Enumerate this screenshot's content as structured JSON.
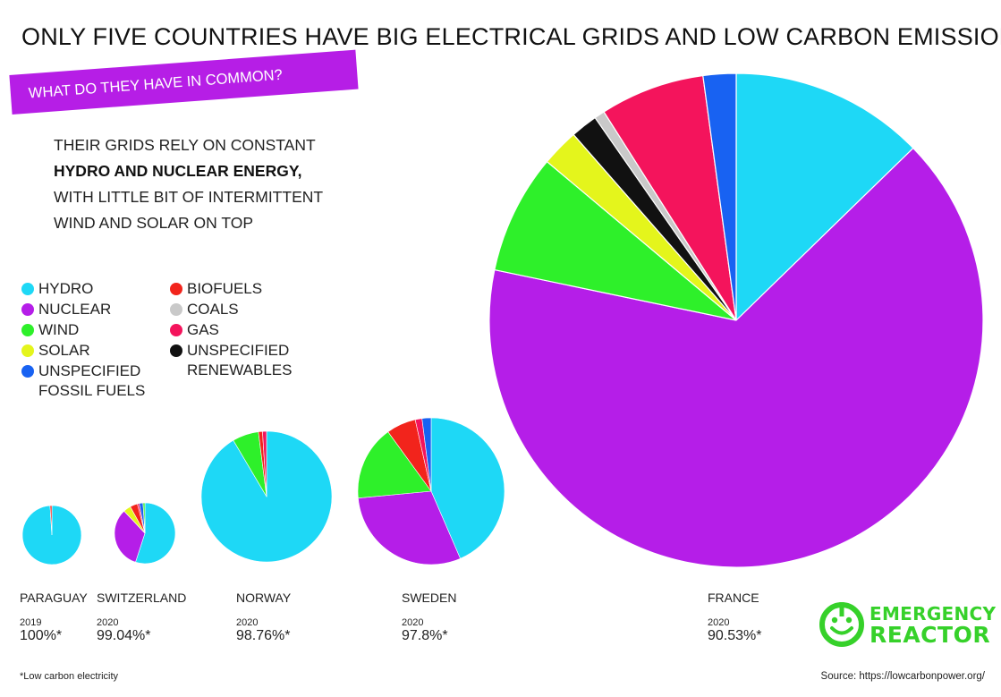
{
  "title": "ONLY FIVE COUNTRIES HAVE BIG ELECTRICAL GRIDS AND LOW CARBON EMISSIONS",
  "banner": "WHAT DO THEY HAVE IN COMMON?",
  "subtext": {
    "line1": "THEIR GRIDS RELY ON CONSTANT",
    "line2": "HYDRO AND NUCLEAR ENERGY,",
    "line3": "WITH LITTLE BIT OF INTERMITTENT",
    "line4": "WIND AND SOLAR ON TOP"
  },
  "legend": [
    {
      "label": "HYDRO",
      "color": "#1ed8f6"
    },
    {
      "label": "NUCLEAR",
      "color": "#b51ee8"
    },
    {
      "label": "WIND",
      "color": "#2ef02a"
    },
    {
      "label": "SOLAR",
      "color": "#e4f51c"
    },
    {
      "label": "UNSPECIFIED\nFOSSIL FUELS",
      "color": "#1862f2"
    },
    {
      "label": "BIOFUELS",
      "color": "#f2241c"
    },
    {
      "label": "COALS",
      "color": "#c9c9c9"
    },
    {
      "label": "GAS",
      "color": "#f4145c"
    },
    {
      "label": "UNSPECIFIED\nRENEWABLES",
      "color": "#111111"
    }
  ],
  "chart_data": [
    {
      "type": "pie",
      "country": "PARAGUAY",
      "year": "2019",
      "low_carbon": "100%*",
      "slices": [
        {
          "source": "HYDRO",
          "value": 99.0
        },
        {
          "source": "BIOFUELS",
          "value": 1.0
        }
      ]
    },
    {
      "type": "pie",
      "country": "SWITZERLAND",
      "year": "2020",
      "low_carbon": "99.04%*",
      "slices": [
        {
          "source": "HYDRO",
          "value": 55
        },
        {
          "source": "NUCLEAR",
          "value": 33
        },
        {
          "source": "SOLAR",
          "value": 4
        },
        {
          "source": "BIOFUELS",
          "value": 4
        },
        {
          "source": "GAS",
          "value": 1
        },
        {
          "source": "UNSPECIFIED FOSSIL FUELS",
          "value": 2
        },
        {
          "source": "WIND",
          "value": 1
        }
      ]
    },
    {
      "type": "pie",
      "country": "NORWAY",
      "year": "2020",
      "low_carbon": "98.76%*",
      "slices": [
        {
          "source": "HYDRO",
          "value": 91.5
        },
        {
          "source": "WIND",
          "value": 6.5
        },
        {
          "source": "BIOFUELS",
          "value": 1.0
        },
        {
          "source": "GAS",
          "value": 1.0
        }
      ]
    },
    {
      "type": "pie",
      "country": "SWEDEN",
      "year": "2020",
      "low_carbon": "97.8%*",
      "slices": [
        {
          "source": "HYDRO",
          "value": 43.5
        },
        {
          "source": "NUCLEAR",
          "value": 30
        },
        {
          "source": "WIND",
          "value": 16.5
        },
        {
          "source": "BIOFUELS",
          "value": 6.5
        },
        {
          "source": "GAS",
          "value": 1.5
        },
        {
          "source": "UNSPECIFIED FOSSIL FUELS",
          "value": 2
        }
      ]
    },
    {
      "type": "pie",
      "country": "FRANCE",
      "year": "2020",
      "low_carbon": "90.53%*",
      "slices": [
        {
          "source": "HYDRO",
          "value": 13
        },
        {
          "source": "NUCLEAR",
          "value": 67
        },
        {
          "source": "WIND",
          "value": 8
        },
        {
          "source": "SOLAR",
          "value": 2.5
        },
        {
          "source": "UNSPECIFIED RENEWABLES",
          "value": 1.8
        },
        {
          "source": "COALS",
          "value": 0.7
        },
        {
          "source": "GAS",
          "value": 7
        },
        {
          "source": "UNSPECIFIED FOSSIL FUELS",
          "value": 2.2
        }
      ]
    }
  ],
  "footnote": "*Low carbon electricity",
  "source": "Source: https://lowcarbonpower.org/",
  "logo": {
    "line1": "EMERGENCY",
    "line2": "REACTOR",
    "color": "#36d12a"
  }
}
